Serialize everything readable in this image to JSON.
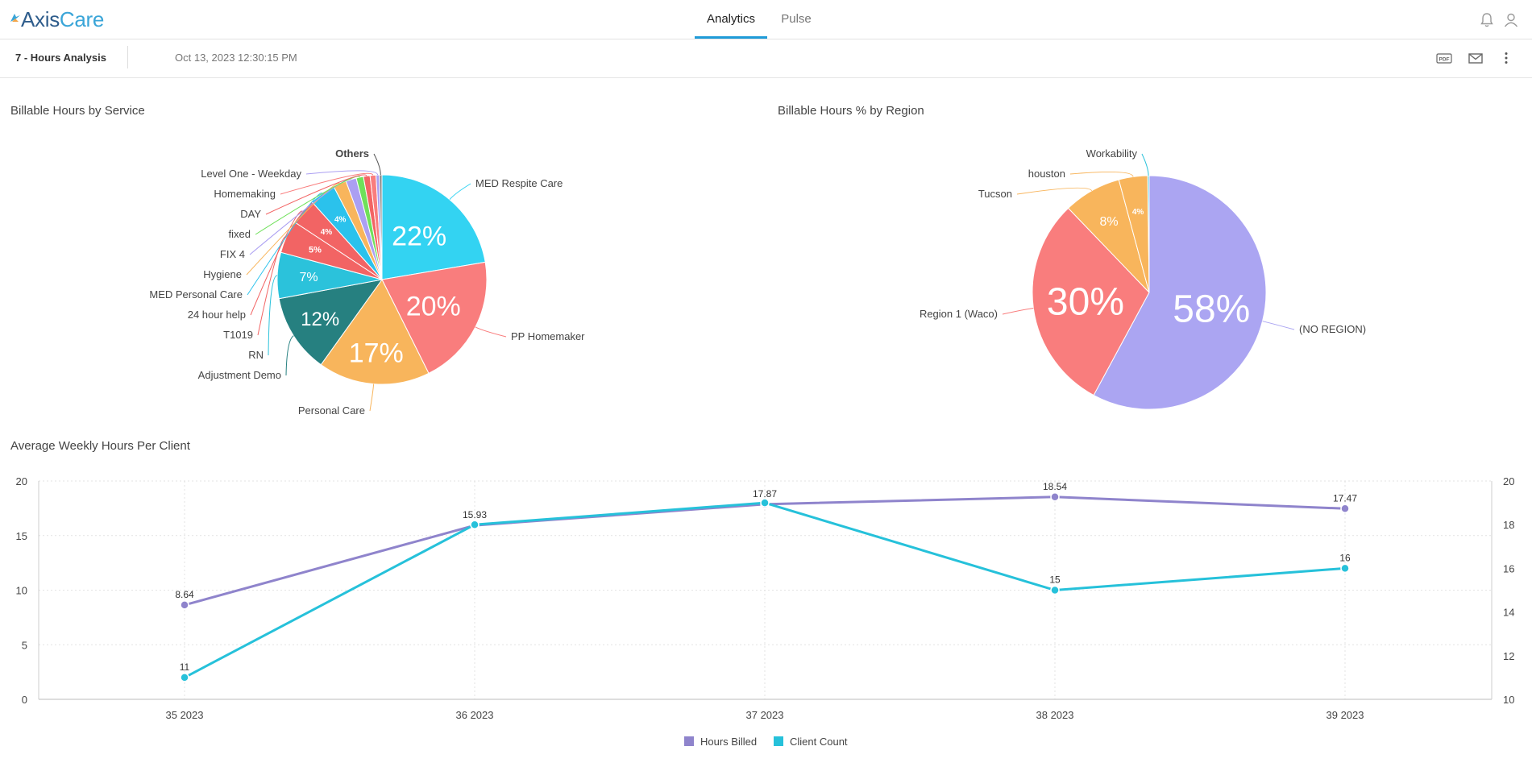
{
  "app": {
    "logo_text_a": "Axis",
    "logo_text_b": "Care",
    "brand_color": "#1f9bd8"
  },
  "nav": {
    "tabs": [
      {
        "label": "Analytics",
        "active": true
      },
      {
        "label": "Pulse",
        "active": false
      }
    ],
    "icons": [
      "bell-icon",
      "user-icon"
    ]
  },
  "report": {
    "title": "7 - Hours Analysis",
    "timestamp": "Oct 13, 2023 12:30:15 PM",
    "actions": [
      "pdf-icon",
      "mail-icon",
      "more-vertical-icon"
    ]
  },
  "chart_data": [
    {
      "type": "pie",
      "title": "Billable Hours by Service",
      "slices": [
        {
          "label": "MED Respite Care",
          "value": 22,
          "pct_label": "22%",
          "color": "#33d3f2"
        },
        {
          "label": "PP Homemaker",
          "value": 20,
          "pct_label": "20%",
          "color": "#f97d7d"
        },
        {
          "label": "Personal Care",
          "value": 17,
          "pct_label": "17%",
          "color": "#f8b55c"
        },
        {
          "label": "Adjustment Demo",
          "value": 12,
          "pct_label": "12%",
          "color": "#268080"
        },
        {
          "label": "RN",
          "value": 7,
          "pct_label": "7%",
          "color": "#2bc2db"
        },
        {
          "label": "T1019",
          "value": 5,
          "pct_label": "5%",
          "color": "#f26464"
        },
        {
          "label": "24 hour help",
          "value": 4,
          "pct_label": "4%",
          "color": "#f26464"
        },
        {
          "label": "MED Personal Care",
          "value": 4,
          "pct_label": "4%",
          "color": "#2bc2ec"
        },
        {
          "label": "Hygiene",
          "value": 2,
          "pct_label": "",
          "color": "#f8b55c"
        },
        {
          "label": "FIX 4",
          "value": 1.6,
          "pct_label": "",
          "color": "#ab9ff2"
        },
        {
          "label": "fixed",
          "value": 1.1,
          "pct_label": "",
          "color": "#6fe05a"
        },
        {
          "label": "DAY",
          "value": 1.0,
          "pct_label": "",
          "color": "#f26464"
        },
        {
          "label": "Homemaking",
          "value": 0.9,
          "pct_label": "",
          "color": "#f97d7d"
        },
        {
          "label": "Level One - Weekday",
          "value": 0.5,
          "pct_label": "",
          "color": "#ab9ff2"
        },
        {
          "label": "Others",
          "value": 0.4,
          "pct_label": "",
          "color": "#888888"
        }
      ]
    },
    {
      "type": "pie",
      "title": "Billable Hours % by Region",
      "slices": [
        {
          "label": "(NO REGION)",
          "value": 58,
          "pct_label": "58%",
          "color": "#aba5f2"
        },
        {
          "label": "Region 1 (Waco)",
          "value": 30,
          "pct_label": "30%",
          "color": "#f97d7d"
        },
        {
          "label": "Tucson",
          "value": 8,
          "pct_label": "8%",
          "color": "#f8b55c"
        },
        {
          "label": "houston",
          "value": 4,
          "pct_label": "4%",
          "color": "#f8b55c"
        },
        {
          "label": "Workability",
          "value": 0.2,
          "pct_label": "",
          "color": "#2bc2db"
        }
      ]
    },
    {
      "type": "line",
      "title": "Average Weekly Hours Per Client",
      "categories": [
        "35 2023",
        "36 2023",
        "37 2023",
        "38 2023",
        "39 2023"
      ],
      "y_left": {
        "min": 0,
        "max": 20,
        "ticks": [
          0,
          5,
          10,
          15,
          20
        ]
      },
      "y_right": {
        "min": 10,
        "max": 20,
        "ticks": [
          10,
          12,
          14,
          16,
          18,
          20
        ]
      },
      "series": [
        {
          "name": "Hours Billed",
          "axis": "left",
          "color": "#8f84cc",
          "values": [
            8.64,
            15.93,
            17.87,
            18.54,
            17.47
          ],
          "labels": [
            "8.64",
            "15.93",
            "17.87",
            "18.54",
            "17.47"
          ]
        },
        {
          "name": "Client Count",
          "axis": "right",
          "color": "#26c1da",
          "values": [
            11,
            18,
            19,
            15,
            16
          ],
          "labels": [
            "11",
            "",
            "",
            "15",
            "16"
          ]
        }
      ],
      "grid": true,
      "legend": "bottom-center"
    }
  ]
}
